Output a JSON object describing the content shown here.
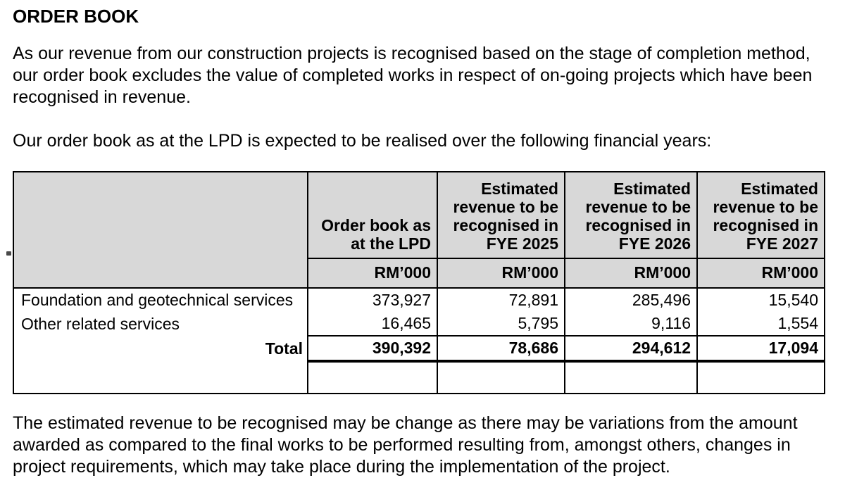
{
  "page": {
    "title": "ORDER BOOK",
    "paragraph_1": "As our revenue from our construction projects is recognised based on the stage of completion method, our order book excludes the value of completed works in respect of on-going projects which have been recognised in revenue.",
    "paragraph_2": "Our order book as at the LPD is expected to be realised over the following financial years:",
    "paragraph_3": "The estimated revenue to be recognised may be change as there may be variations from the amount awarded as compared to the final works to be performed resulting from, amongst others, changes in project requirements, which may take place during the implementation of the project.",
    "table": {
      "row_header_column": "",
      "columns": [
        {
          "header": "Order book as at the LPD",
          "unit": "RM’000"
        },
        {
          "header": "Estimated revenue to be recognised in FYE 2025",
          "unit": "RM’000"
        },
        {
          "header": "Estimated revenue to be recognised in FYE 2026",
          "unit": "RM’000"
        },
        {
          "header": "Estimated revenue to be recognised in FYE 2027",
          "unit": "RM’000"
        }
      ],
      "rows": [
        {
          "label": "Foundation and geotechnical services",
          "values": [
            "373,927",
            "72,891",
            "285,496",
            "15,540"
          ]
        },
        {
          "label": "Other related services",
          "values": [
            "16,465",
            "5,795",
            "9,116",
            "1,554"
          ]
        }
      ],
      "total": {
        "label": "Total",
        "values": [
          "390,392",
          "78,686",
          "294,612",
          "17,094"
        ]
      }
    },
    "colors": {
      "header_bg": "#d8d8d8",
      "border": "#000000",
      "text": "#000000",
      "page_bg": "#ffffff"
    }
  }
}
